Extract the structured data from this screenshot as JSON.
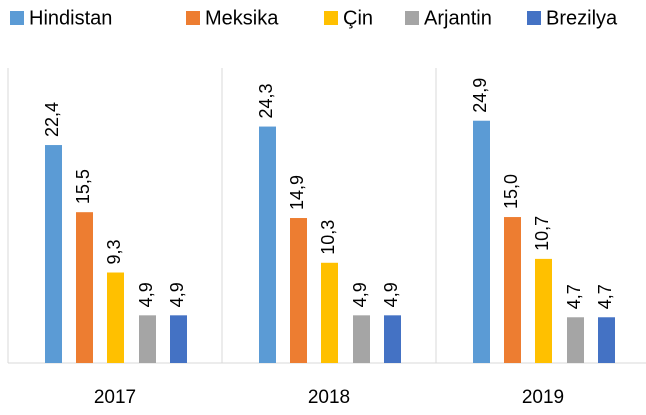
{
  "chart_data": {
    "type": "bar",
    "categories": [
      "2017",
      "2018",
      "2019"
    ],
    "series": [
      {
        "name": "Hindistan",
        "color": "#5b9bd5",
        "values": [
          22.4,
          24.3,
          24.9
        ],
        "value_labels": [
          "22,4",
          "24,3",
          "24,9"
        ]
      },
      {
        "name": "Meksika",
        "color": "#ed7d31",
        "values": [
          15.5,
          14.9,
          15.0
        ],
        "value_labels": [
          "15,5",
          "14,9",
          "15,0"
        ]
      },
      {
        "name": "Çin",
        "color": "#ffc000",
        "values": [
          9.3,
          10.3,
          10.7
        ],
        "value_labels": [
          "9,3",
          "10,3",
          "10,7"
        ]
      },
      {
        "name": "Arjantin",
        "color": "#a5a5a5",
        "values": [
          4.9,
          4.9,
          4.7
        ],
        "value_labels": [
          "4,9",
          "4,9",
          "4,7"
        ]
      },
      {
        "name": "Brezilya",
        "color": "#4472c4",
        "values": [
          4.9,
          4.9,
          4.7
        ],
        "value_labels": [
          "4,9",
          "4,9",
          "4,7"
        ]
      }
    ],
    "legend": "top"
  }
}
